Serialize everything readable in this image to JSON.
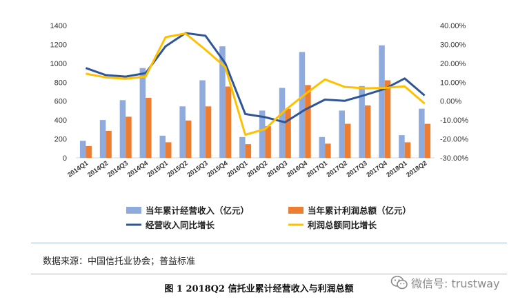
{
  "chart_data": {
    "type": "bar+line",
    "title": "",
    "categories": [
      "2014Q1",
      "2014Q2",
      "2014Q3",
      "2014Q4",
      "2015Q1",
      "2015Q2",
      "2015Q3",
      "2015Q4",
      "2016Q1",
      "2016Q2",
      "2016Q3",
      "2016Q4",
      "2017Q1",
      "2017Q2",
      "2017Q3",
      "2017Q4",
      "2018Q1",
      "2018Q2"
    ],
    "left_axis": {
      "ylim": [
        0,
        1400
      ],
      "ticks": [
        "0",
        "200",
        "400",
        "600",
        "800",
        "1000",
        "1200",
        "1400"
      ]
    },
    "right_axis": {
      "ylim": [
        -30,
        40
      ],
      "ticks": [
        "-30.00%",
        "-20.00%",
        "-10.00%",
        "0.00%",
        "10.00%",
        "20.00%",
        "30.00%",
        "40.00%"
      ]
    },
    "series": [
      {
        "name": "当年累计经营收入（亿元）",
        "type": "bar",
        "axis": "left",
        "color": "#8faadc",
        "values": [
          180,
          400,
          610,
          950,
          235,
          545,
          820,
          1180,
          220,
          500,
          740,
          1120,
          220,
          500,
          760,
          1190,
          240,
          520
        ]
      },
      {
        "name": "当年累计利润总额（亿元）",
        "type": "bar",
        "axis": "left",
        "color": "#ed7d31",
        "values": [
          125,
          285,
          435,
          635,
          165,
          395,
          545,
          755,
          145,
          335,
          520,
          770,
          150,
          360,
          555,
          820,
          165,
          360
        ]
      },
      {
        "name": "经营收入同比增长",
        "type": "line",
        "axis": "right",
        "color": "#2f5597",
        "values": [
          17.5,
          13.8,
          13,
          14.8,
          29,
          36,
          34.6,
          20,
          -6.8,
          -8.5,
          -11.2,
          -4.5,
          0.8,
          0.2,
          3.2,
          6.5,
          12,
          3
        ]
      },
      {
        "name": "利润总额同比增长",
        "type": "line",
        "axis": "right",
        "color": "#ffc000",
        "values": [
          14.5,
          12.6,
          11.8,
          13,
          33.8,
          35.8,
          27.2,
          18,
          -17.8,
          -14.8,
          -4.8,
          3.6,
          11.5,
          7.5,
          6.8,
          7,
          7.8,
          -1.3
        ]
      }
    ],
    "legend_position": "bottom",
    "grid": false
  },
  "source_text": "数据来源：中国信托业协会；普益标准",
  "caption_text": "图 1 2018Q2 信托业累计经营收入与利润总额",
  "watermark": {
    "icon": "wechat-icon",
    "text": "微信号: trustway",
    "color": "#8a8a8a"
  }
}
